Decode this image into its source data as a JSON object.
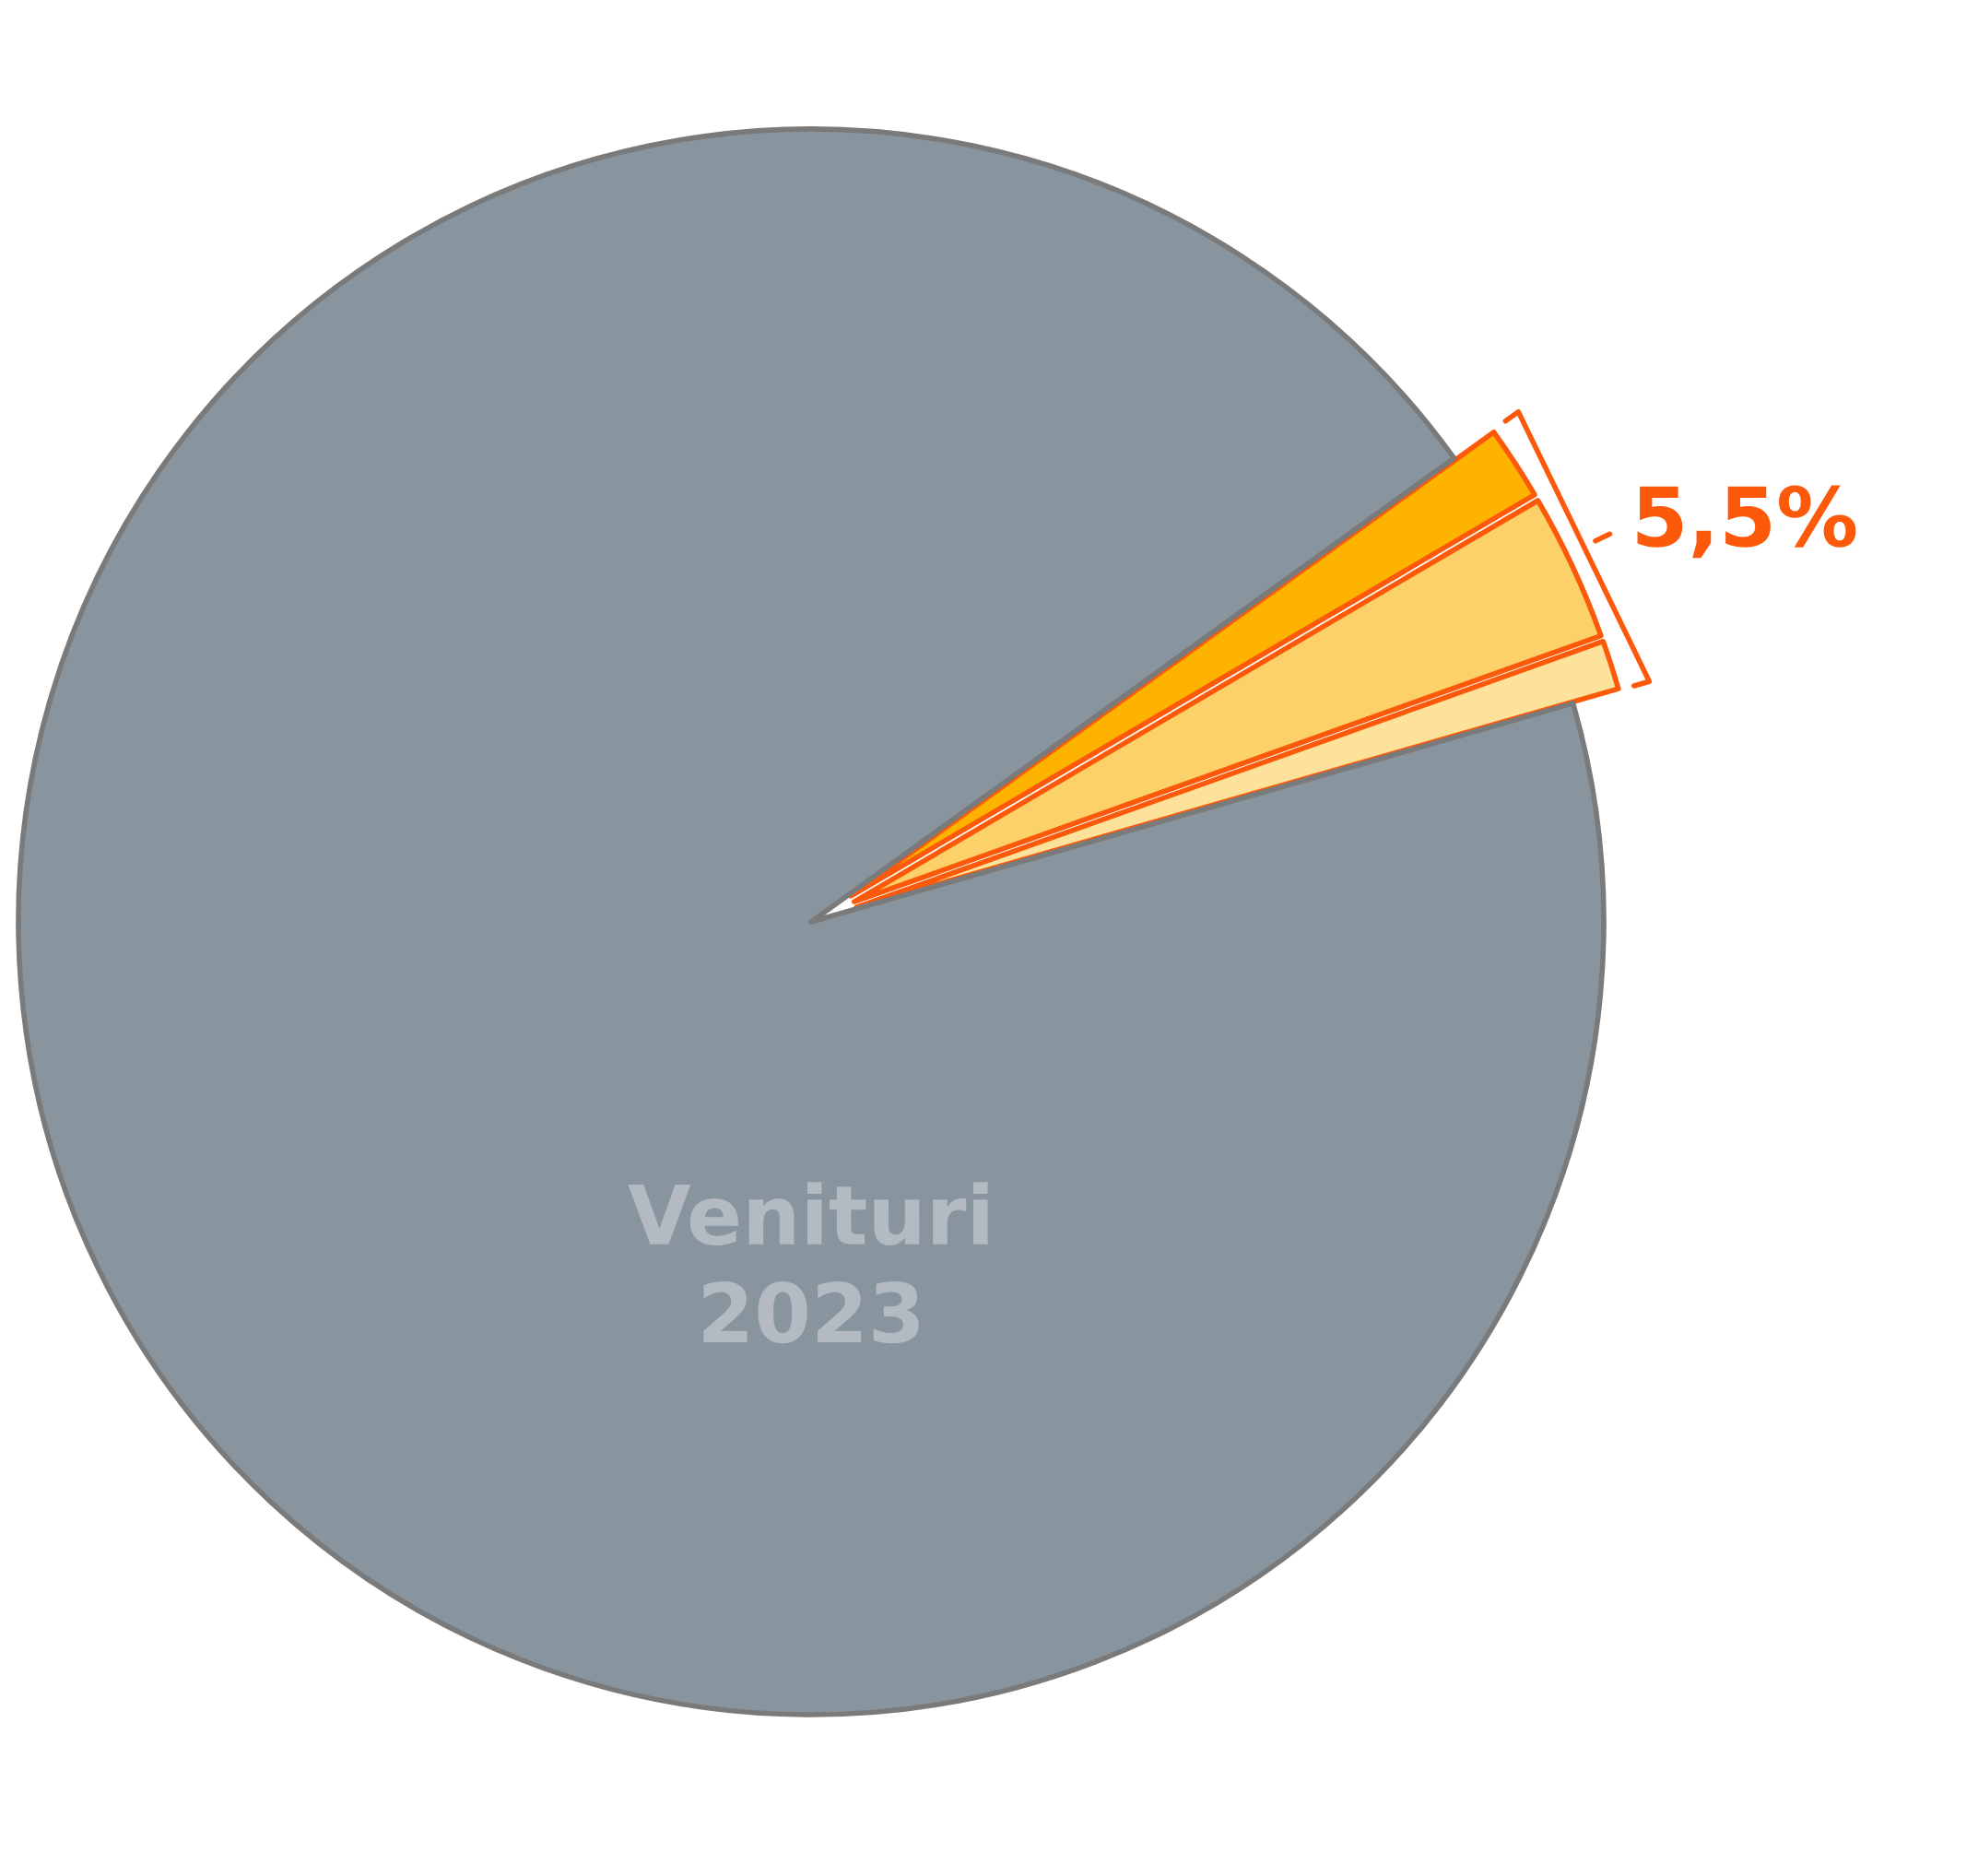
{
  "chart_data": {
    "type": "pie",
    "categories": [
      null,
      null,
      null,
      null
    ],
    "values": [
      1.0,
      3.0,
      1.5,
      94.5
    ],
    "colors": [
      "#fde29b",
      "#fdd16a",
      "#fdb300",
      "#89959e"
    ],
    "annotations": [
      "Venituri\n2023",
      "5,5%"
    ]
  }
}
